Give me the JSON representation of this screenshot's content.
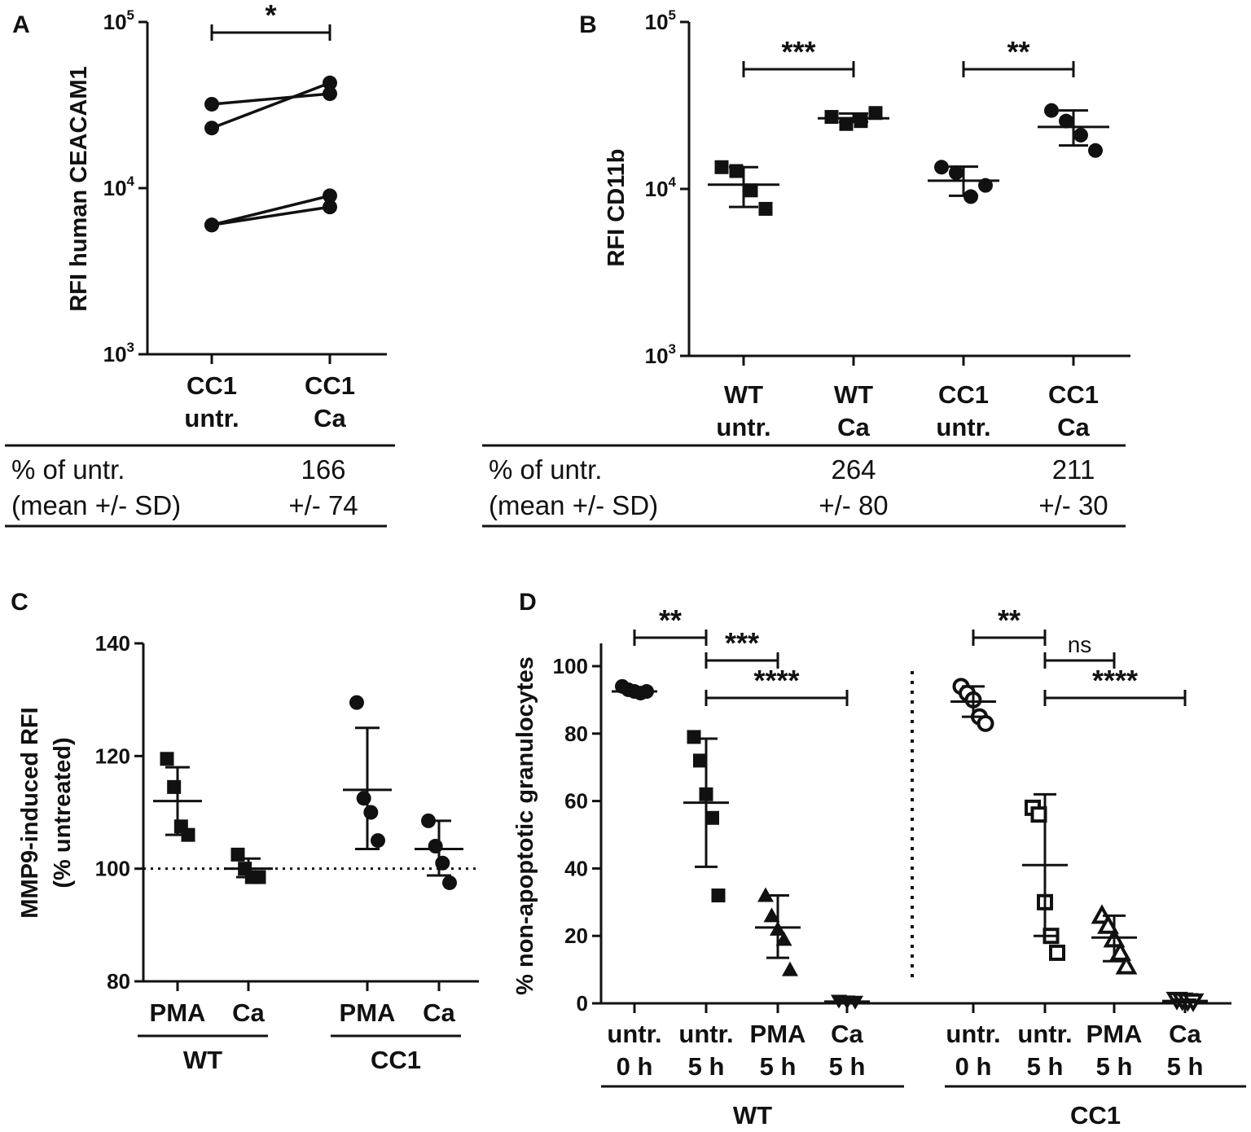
{
  "chart_data": [
    {
      "panel": "A",
      "type": "scatter",
      "y_scale": "log",
      "ylabel": "RFI human CEACAM1",
      "ylim": [
        1000,
        100000
      ],
      "yticks": [
        {
          "base": "10",
          "exp": "3",
          "value": 1000
        },
        {
          "base": "10",
          "exp": "4",
          "value": 10000
        },
        {
          "base": "10",
          "exp": "5",
          "value": 100000
        }
      ],
      "categories": [
        {
          "line1": "CC1",
          "line2": "untr."
        },
        {
          "line1": "CC1",
          "line2": "Ca"
        }
      ],
      "pairs": [
        [
          32000,
          37000
        ],
        [
          23000,
          43000
        ],
        [
          6000,
          9000
        ],
        [
          6000,
          7700
        ]
      ],
      "significance": [
        {
          "from": 0,
          "to": 1,
          "label": "*"
        }
      ],
      "table": {
        "row1_label": "% of untr.",
        "row2_label": "(mean +/- SD)",
        "values": [
          {
            "col": 1,
            "value": "166",
            "sd": "+/- 74"
          }
        ]
      }
    },
    {
      "panel": "B",
      "type": "scatter",
      "y_scale": "log",
      "ylabel": "RFI CD11b",
      "ylim": [
        1000,
        100000
      ],
      "yticks": [
        {
          "base": "10",
          "exp": "3",
          "value": 1000
        },
        {
          "base": "10",
          "exp": "4",
          "value": 10000
        },
        {
          "base": "10",
          "exp": "5",
          "value": 100000
        }
      ],
      "categories": [
        {
          "line1": "WT",
          "line2": "untr."
        },
        {
          "line1": "WT",
          "line2": "Ca"
        },
        {
          "line1": "CC1",
          "line2": "untr."
        },
        {
          "line1": "CC1",
          "line2": "Ca"
        }
      ],
      "series": [
        {
          "name": "WT untr.",
          "marker": "square",
          "values": [
            13500,
            12800,
            9800,
            7600
          ],
          "mean": 10600,
          "sd_low": 7800,
          "sd_high": 13500
        },
        {
          "name": "WT Ca",
          "marker": "square",
          "values": [
            27000,
            24500,
            25500,
            28500
          ],
          "mean": 26500,
          "sd_low": 25200,
          "sd_high": 28300
        },
        {
          "name": "CC1 untr.",
          "marker": "circle",
          "values": [
            13500,
            12500,
            9000,
            10500
          ],
          "mean": 11200,
          "sd_low": 9100,
          "sd_high": 13600
        },
        {
          "name": "CC1 Ca",
          "marker": "circle",
          "values": [
            29500,
            25500,
            21000,
            17000
          ],
          "mean": 23500,
          "sd_low": 18200,
          "sd_high": 29500
        }
      ],
      "significance": [
        {
          "from": 0,
          "to": 1,
          "label": "***"
        },
        {
          "from": 2,
          "to": 3,
          "label": "**"
        }
      ],
      "table": {
        "row1_label": "% of untr.",
        "row2_label": "(mean +/- SD)",
        "values": [
          {
            "col": 1,
            "value": "264",
            "sd": "+/- 80"
          },
          {
            "col": 3,
            "value": "211",
            "sd": "+/- 30"
          }
        ]
      }
    },
    {
      "panel": "C",
      "type": "scatter",
      "ylabel_line1": "MMP9-induced RFI",
      "ylabel_line2": "(% untreated)",
      "ylim": [
        80,
        140
      ],
      "yticks": [
        80,
        100,
        120,
        140
      ],
      "reference_line": 100,
      "categories": [
        "PMA",
        "Ca",
        "PMA",
        "Ca"
      ],
      "groups": [
        {
          "label": "WT",
          "cols": [
            0,
            1
          ]
        },
        {
          "label": "CC1",
          "cols": [
            2,
            3
          ]
        }
      ],
      "series": [
        {
          "name": "WT PMA",
          "marker": "square",
          "values": [
            119.5,
            114.5,
            107.5,
            106
          ],
          "mean": 112,
          "sd_low": 106,
          "sd_high": 118
        },
        {
          "name": "WT Ca",
          "marker": "square",
          "values": [
            102.5,
            100,
            98.5,
            98.5
          ],
          "mean": 100,
          "sd_low": 98.5,
          "sd_high": 101.8
        },
        {
          "name": "CC1 PMA",
          "marker": "circle",
          "values": [
            129.5,
            112.5,
            110,
            105
          ],
          "mean": 114,
          "sd_low": 103.5,
          "sd_high": 125
        },
        {
          "name": "CC1 Ca",
          "marker": "circle",
          "values": [
            108.5,
            104,
            101,
            97.5
          ],
          "mean": 103.5,
          "sd_low": 98.8,
          "sd_high": 108.5
        }
      ]
    },
    {
      "panel": "D",
      "type": "scatter",
      "ylabel": "% non-apoptotic granulocytes",
      "ylim": [
        0,
        100
      ],
      "yticks": [
        0,
        20,
        40,
        60,
        80,
        100
      ],
      "categories": [
        {
          "line1": "untr.",
          "line2": "0 h"
        },
        {
          "line1": "untr.",
          "line2": "5 h"
        },
        {
          "line1": "PMA",
          "line2": "5 h"
        },
        {
          "line1": "Ca",
          "line2": "5 h"
        },
        {
          "line1": "untr.",
          "line2": "0 h"
        },
        {
          "line1": "untr.",
          "line2": "5 h"
        },
        {
          "line1": "PMA",
          "line2": "5 h"
        },
        {
          "line1": "Ca",
          "line2": "5 h"
        }
      ],
      "groups": [
        {
          "label": "WT",
          "cols": [
            0,
            1,
            2,
            3
          ]
        },
        {
          "label": "CC1",
          "cols": [
            4,
            5,
            6,
            7
          ]
        }
      ],
      "series": [
        {
          "name": "WT untr. 0 h",
          "marker": "circle",
          "values": [
            94,
            93,
            92.5,
            92,
            92.5
          ],
          "mean": 92.5,
          "sd_low": 92,
          "sd_high": 93
        },
        {
          "name": "WT untr. 5 h",
          "marker": "square",
          "values": [
            79,
            72,
            62,
            55,
            32
          ],
          "mean": 59.5,
          "sd_low": 40.5,
          "sd_high": 78.5
        },
        {
          "name": "WT PMA 5 h",
          "marker": "triangle-up",
          "values": [
            32,
            26,
            22,
            19,
            10
          ],
          "mean": 22.5,
          "sd_low": 13.5,
          "sd_high": 32
        },
        {
          "name": "WT Ca 5 h",
          "marker": "triangle-down",
          "values": [
            0.6,
            0.4,
            0.3
          ],
          "mean": 0.5,
          "sd_low": 0.3,
          "sd_high": 0.7
        },
        {
          "name": "CC1 untr. 0 h",
          "marker": "circle-open",
          "values": [
            94,
            92,
            90,
            85,
            83
          ],
          "mean": 89.5,
          "sd_low": 85,
          "sd_high": 94
        },
        {
          "name": "CC1 untr. 5 h",
          "marker": "square-open",
          "values": [
            58,
            56,
            30,
            20,
            15
          ],
          "mean": 41,
          "sd_low": 20,
          "sd_high": 62
        },
        {
          "name": "CC1 PMA 5 h",
          "marker": "triangle-up-open",
          "values": [
            26,
            23,
            19,
            15,
            11
          ],
          "mean": 19.5,
          "sd_low": 12.5,
          "sd_high": 26
        },
        {
          "name": "CC1 Ca 5 h",
          "marker": "triangle-down-open",
          "values": [
            1,
            0.8,
            0.6,
            0.5
          ],
          "mean": 0.7,
          "sd_low": 0.3,
          "sd_high": 1.1
        }
      ],
      "significance": [
        {
          "from": 0,
          "to": 1,
          "label": "**"
        },
        {
          "from": 1,
          "to": 2,
          "label": "***"
        },
        {
          "from": 1,
          "to": 3,
          "label": "****"
        },
        {
          "from": 4,
          "to": 5,
          "label": "**"
        },
        {
          "from": 5,
          "to": 6,
          "label": "ns"
        },
        {
          "from": 5,
          "to": 7,
          "label": "****"
        }
      ]
    }
  ]
}
